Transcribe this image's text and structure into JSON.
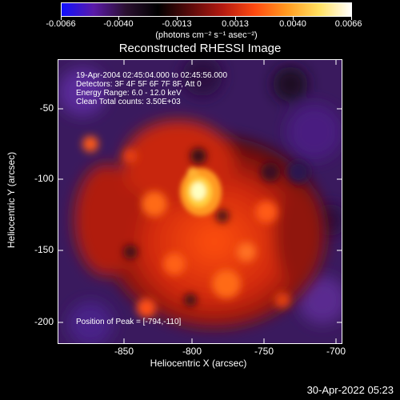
{
  "colorbar": {
    "ticks": [
      "-0.0066",
      "-0.0040",
      "-0.0013",
      "0.0013",
      "0.0040",
      "0.0066"
    ],
    "units": "(photons cm⁻² s⁻¹ asec⁻²)",
    "stops": [
      "#1010ff",
      "#5a1aa8",
      "#2a1030",
      "#000000",
      "#5a0a0a",
      "#b41a10",
      "#ff4a10",
      "#ff9a20",
      "#ffe060",
      "#ffffff"
    ]
  },
  "title": "Reconstructed RHESSI Image",
  "info": {
    "time": "19-Apr-2004 02:45:04.000 to 02:45:56.000",
    "detectors": "Detectors: 3F 4F 5F 6F 7F 8F, Att 0",
    "energy": "Energy Range: 6.0 - 12.0 keV",
    "clean": "Clean     Total counts: 3.50E+03"
  },
  "peak": "Position of Peak = [-794,-110]",
  "axes": {
    "xlabel": "Heliocentric X (arcsec)",
    "ylabel": "Heliocentric Y (arcsec)",
    "xticks": [
      "-850",
      "-800",
      "-750",
      "-700"
    ],
    "yticks": [
      "-50",
      "-100",
      "-150",
      "-200"
    ]
  },
  "timestamp": "30-Apr-2022 05:23"
}
